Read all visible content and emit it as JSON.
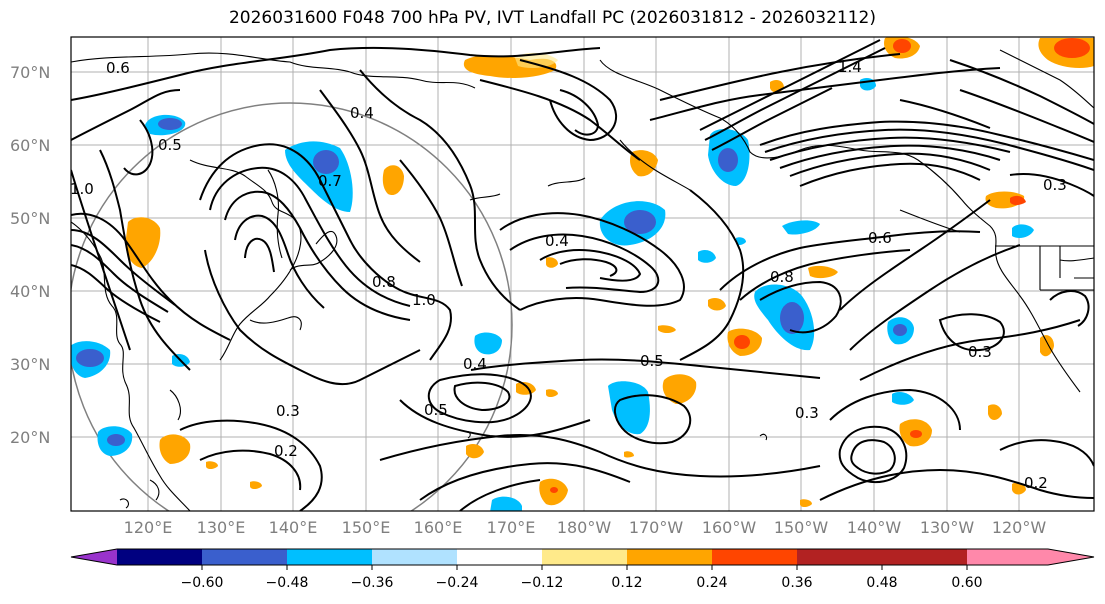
{
  "title": "2026031600 F048 700 hPa PV, IVT Landfall PC (2026031812 - 2026032112)",
  "axes": {
    "lat_labels": [
      "70°N",
      "60°N",
      "50°N",
      "40°N",
      "30°N",
      "20°N"
    ],
    "lon_labels": [
      "120°E",
      "130°E",
      "140°E",
      "150°E",
      "160°E",
      "170°E",
      "180°W",
      "170°W",
      "160°W",
      "150°W",
      "140°W",
      "130°W",
      "120°W"
    ]
  },
  "contour_labels": [
    "0.6",
    "0.5",
    "0.4",
    "0.7",
    "1.0",
    "0.8",
    "0.3",
    "0.2",
    "1.4",
    "0.6",
    "0.4",
    "0.5",
    "0.3",
    "0.8",
    "1.0",
    "0.4",
    "0.5",
    "0.3",
    "0.2",
    "0.3"
  ],
  "colorbar": {
    "ticks": [
      "−0.60",
      "−0.48",
      "−0.36",
      "−0.24",
      "−0.12",
      "0.12",
      "0.24",
      "0.36",
      "0.48",
      "0.60"
    ],
    "colors": [
      "#9933cc",
      "#000080",
      "#3a5fcd",
      "#00bfff",
      "#b0e2ff",
      "#ffffff",
      "#ffea8a",
      "#ffa500",
      "#ff4500",
      "#b22222",
      "#ff88aa"
    ]
  }
}
